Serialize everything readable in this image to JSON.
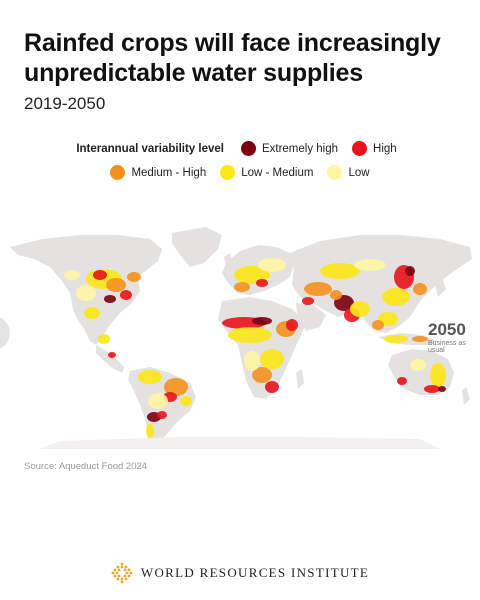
{
  "header": {
    "title": "Rainfed crops will face increasingly unpredictable water supplies",
    "subtitle": "2019-2050"
  },
  "legend": {
    "title": "Interannual variability level",
    "items": [
      {
        "label": "Extremely high",
        "color": "#7a0010"
      },
      {
        "label": "High",
        "color": "#e8141b"
      },
      {
        "label": "Medium - High",
        "color": "#f5901e"
      },
      {
        "label": "Low - Medium",
        "color": "#fbe715"
      },
      {
        "label": "Low",
        "color": "#fff5a3"
      }
    ]
  },
  "map": {
    "land_color": "#e4e2e0",
    "no_data_color": "#f3f1ef",
    "scenario_year": "2050",
    "scenario_name": "Business as usual"
  },
  "source": "Source: Aqueduct Food 2024",
  "footer": {
    "org_name": "WORLD RESOURCES INSTITUTE",
    "logo_color": "#e0a82e"
  }
}
